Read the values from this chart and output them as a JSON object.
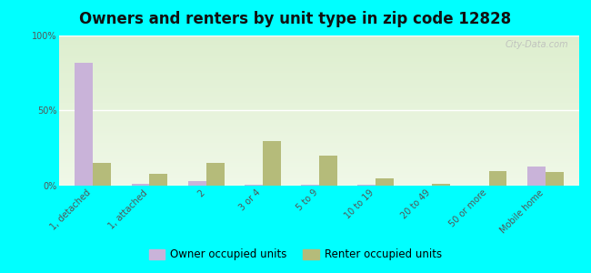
{
  "title": "Owners and renters by unit type in zip code 12828",
  "categories": [
    "1, detached",
    "1, attached",
    "2",
    "3 or 4",
    "5 to 9",
    "10 to 19",
    "20 to 49",
    "50 or more",
    "Mobile home"
  ],
  "owner_values": [
    82,
    1,
    3,
    0.5,
    0.5,
    0.5,
    0.2,
    0.2,
    13
  ],
  "renter_values": [
    15,
    8,
    15,
    30,
    20,
    5,
    1,
    10,
    9
  ],
  "owner_color": "#c9b3d9",
  "renter_color": "#b5bb7a",
  "grad_top": "#ddeece",
  "grad_bottom": "#f0f8e8",
  "outer_bg": "#00ffff",
  "ylabel_ticks": [
    0,
    50,
    100
  ],
  "ylabel_labels": [
    "0%",
    "50%",
    "100%"
  ],
  "bar_width": 0.32,
  "legend_owner": "Owner occupied units",
  "legend_renter": "Renter occupied units",
  "title_fontsize": 12,
  "tick_fontsize": 7,
  "legend_fontsize": 8.5
}
